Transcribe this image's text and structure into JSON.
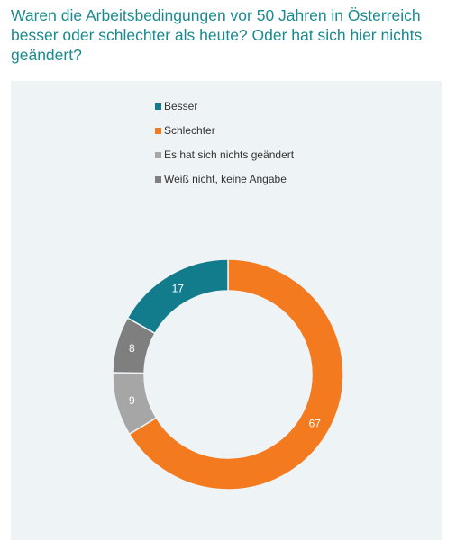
{
  "title": "Waren die Arbeitsbedingungen vor 50 Jahren in Österreich besser oder schlechter als heute? Oder hat sich hier nichts geändert?",
  "chart_data": {
    "type": "pie",
    "donut": true,
    "categories": [
      "Besser",
      "Schlechter",
      "Es hat sich nichts geändert",
      "Weiß nicht, keine Angabe"
    ],
    "values": [
      17,
      67,
      9,
      8
    ],
    "colors": [
      "#127c8c",
      "#f47a1f",
      "#a6a6a6",
      "#7f7f7f"
    ],
    "legend": "top-left"
  }
}
